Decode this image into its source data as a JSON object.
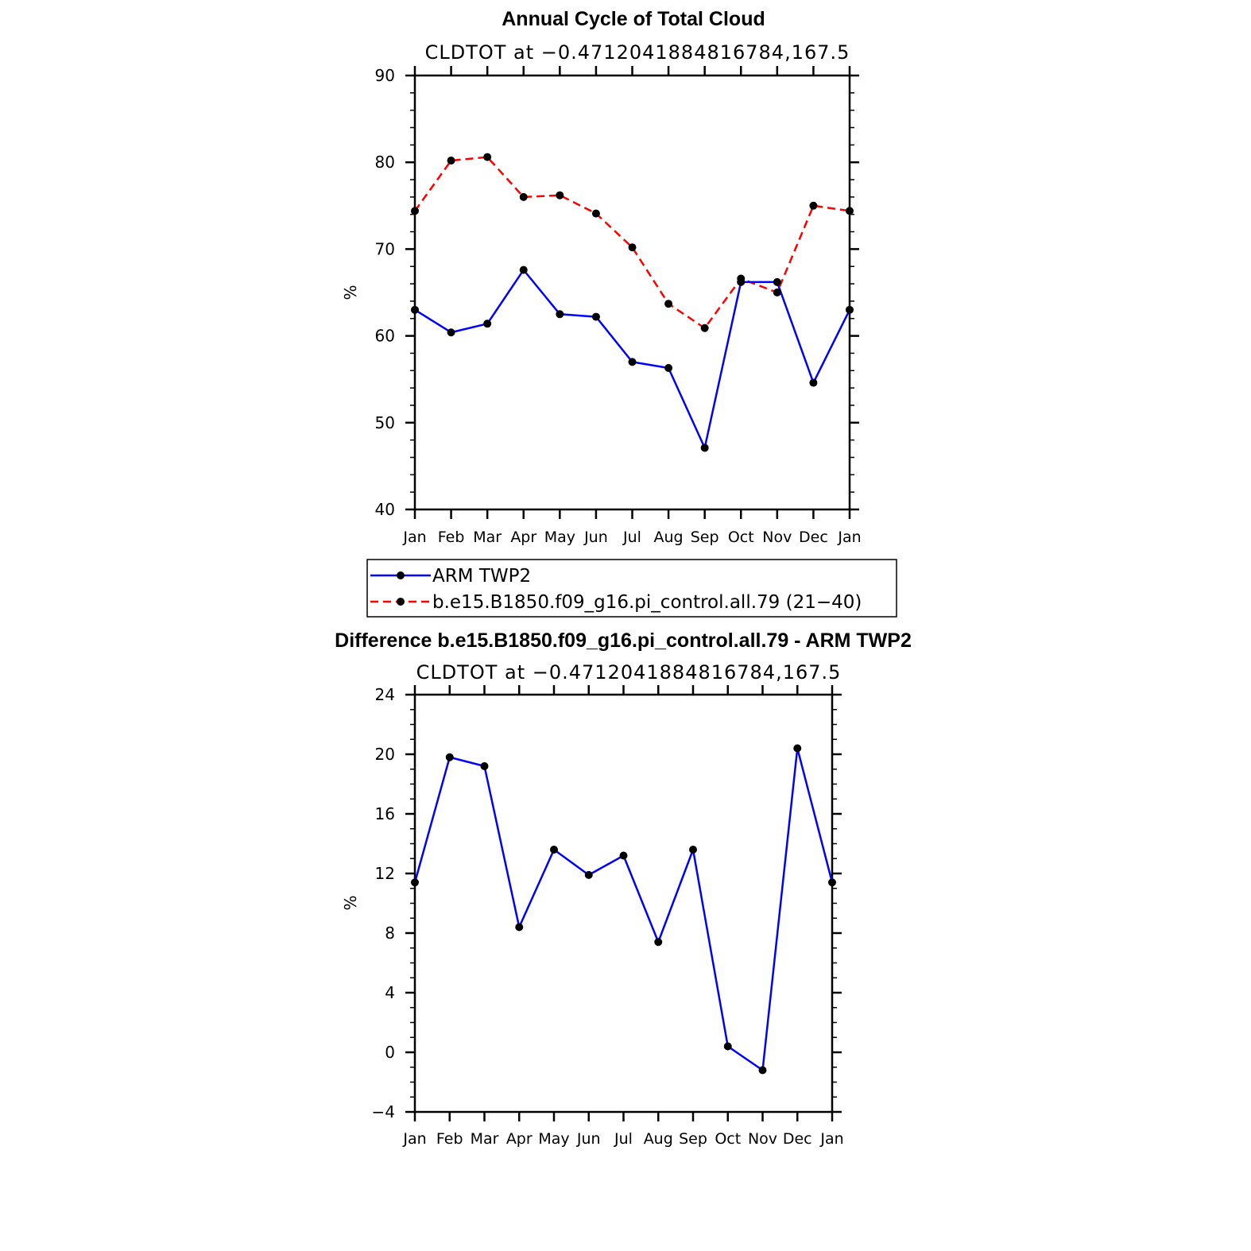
{
  "chart_data": [
    {
      "type": "line",
      "title": "Annual Cycle of Total Cloud",
      "subtitle": "CLDTOT at −0.4712041884816784,167.5",
      "ylabel": "%",
      "ylim": [
        40,
        90
      ],
      "yticks": [
        "40",
        "50",
        "60",
        "70",
        "80",
        "90"
      ],
      "categories": [
        "Jan",
        "Feb",
        "Mar",
        "Apr",
        "May",
        "Jun",
        "Jul",
        "Aug",
        "Sep",
        "Oct",
        "Nov",
        "Dec",
        "Jan"
      ],
      "series": [
        {
          "name": "ARM TWP2",
          "color": "#0000ff",
          "dash": "solid",
          "values": [
            63.0,
            60.4,
            61.4,
            67.6,
            62.5,
            62.2,
            57.0,
            56.3,
            47.1,
            66.2,
            66.2,
            54.6,
            63.0
          ]
        },
        {
          "name": "b.e15.B1850.f09_g16.pi_control.all.79 (21−40)",
          "color": "#ff0000",
          "dash": "dashed",
          "values": [
            74.4,
            80.2,
            80.6,
            76.0,
            76.2,
            74.1,
            70.2,
            63.7,
            60.9,
            66.6,
            65.0,
            75.0,
            74.4
          ]
        }
      ],
      "legend": "below"
    },
    {
      "type": "line",
      "title": "Difference b.e15.B1850.f09_g16.pi_control.all.79 - ARM TWP2",
      "subtitle": "CLDTOT at −0.4712041884816784,167.5",
      "ylabel": "%",
      "ylim": [
        -4,
        24
      ],
      "yticks": [
        "−4",
        "0",
        "4",
        "8",
        "12",
        "16",
        "20",
        "24"
      ],
      "categories": [
        "Jan",
        "Feb",
        "Mar",
        "Apr",
        "May",
        "Jun",
        "Jul",
        "Aug",
        "Sep",
        "Oct",
        "Nov",
        "Dec",
        "Jan"
      ],
      "series": [
        {
          "color": "#0000ff",
          "dash": "solid",
          "values": [
            11.4,
            19.8,
            19.2,
            8.4,
            13.6,
            11.9,
            13.2,
            7.4,
            13.6,
            0.4,
            -1.2,
            20.4,
            11.4
          ]
        }
      ]
    }
  ]
}
